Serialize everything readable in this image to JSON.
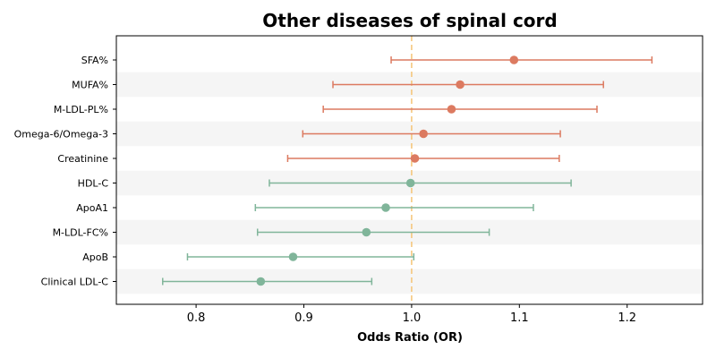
{
  "chart_data": {
    "type": "scatter",
    "subtype": "forest-plot",
    "title": "Other diseases of spinal cord",
    "xlabel": "Odds Ratio (OR)",
    "ylabel": "",
    "xlim": [
      0.726,
      1.27
    ],
    "xticks": [
      0.8,
      0.9,
      1.0,
      1.1,
      1.2
    ],
    "xtick_labels": [
      "0.8",
      "0.9",
      "1.0",
      "1.1",
      "1.2"
    ],
    "reference_line": 1.0,
    "reference_line_color": "#f5c77e",
    "grid": false,
    "row_band_color": "#f5f5f5",
    "colors": {
      "risk": "#dc7a60",
      "protective": "#80b59a"
    },
    "rows": [
      {
        "label": "SFA%",
        "or": 1.095,
        "lower": 0.981,
        "upper": 1.223,
        "group": "risk"
      },
      {
        "label": "MUFA%",
        "or": 1.045,
        "lower": 0.927,
        "upper": 1.178,
        "group": "risk"
      },
      {
        "label": "M-LDL-PL%",
        "or": 1.037,
        "lower": 0.918,
        "upper": 1.172,
        "group": "risk"
      },
      {
        "label": "Omega-6/Omega-3",
        "or": 1.011,
        "lower": 0.899,
        "upper": 1.138,
        "group": "risk"
      },
      {
        "label": "Creatinine",
        "or": 1.003,
        "lower": 0.885,
        "upper": 1.137,
        "group": "risk"
      },
      {
        "label": "HDL-C",
        "or": 0.999,
        "lower": 0.868,
        "upper": 1.148,
        "group": "protective"
      },
      {
        "label": "ApoA1",
        "or": 0.976,
        "lower": 0.855,
        "upper": 1.113,
        "group": "protective"
      },
      {
        "label": "M-LDL-FC%",
        "or": 0.958,
        "lower": 0.857,
        "upper": 1.072,
        "group": "protective"
      },
      {
        "label": "ApoB",
        "or": 0.89,
        "lower": 0.792,
        "upper": 1.002,
        "group": "protective"
      },
      {
        "label": "Clinical LDL-C",
        "or": 0.86,
        "lower": 0.769,
        "upper": 0.963,
        "group": "protective"
      }
    ]
  }
}
